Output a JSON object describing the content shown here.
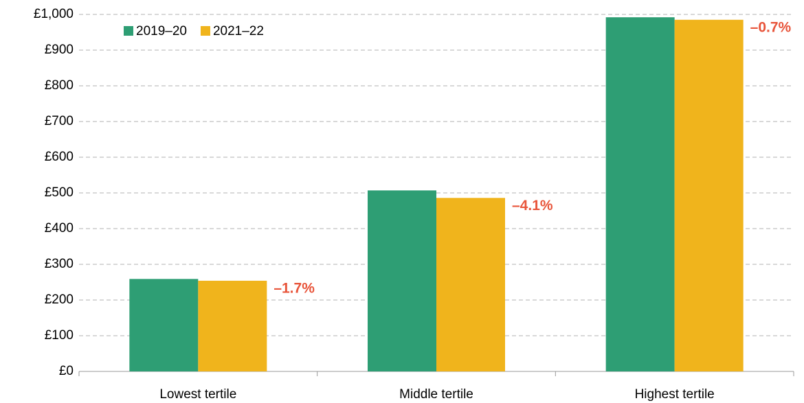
{
  "chart_data": {
    "type": "bar",
    "categories": [
      "Lowest tertile",
      "Middle tertile",
      "Highest tertile"
    ],
    "series": [
      {
        "name": "2019–20",
        "color": "#2e9e74",
        "values": [
          259,
          507,
          992
        ]
      },
      {
        "name": "2021–22",
        "color": "#f0b41c",
        "values": [
          254,
          486,
          985
        ]
      }
    ],
    "annotations": [
      "–1.7%",
      "–4.1%",
      "–0.7%"
    ],
    "annotation_color": "#e8543a",
    "ylim": [
      0,
      1000
    ],
    "yticks": [
      {
        "value": 0,
        "label": "£0"
      },
      {
        "value": 100,
        "label": "£100"
      },
      {
        "value": 200,
        "label": "£200"
      },
      {
        "value": 300,
        "label": "£300"
      },
      {
        "value": 400,
        "label": "£400"
      },
      {
        "value": 500,
        "label": "£500"
      },
      {
        "value": 600,
        "label": "£600"
      },
      {
        "value": 700,
        "label": "£700"
      },
      {
        "value": 800,
        "label": "£800"
      },
      {
        "value": 900,
        "label": "£900"
      },
      {
        "value": 1000,
        "label": "£1,000"
      }
    ],
    "grid": true,
    "legend": "top-left"
  }
}
